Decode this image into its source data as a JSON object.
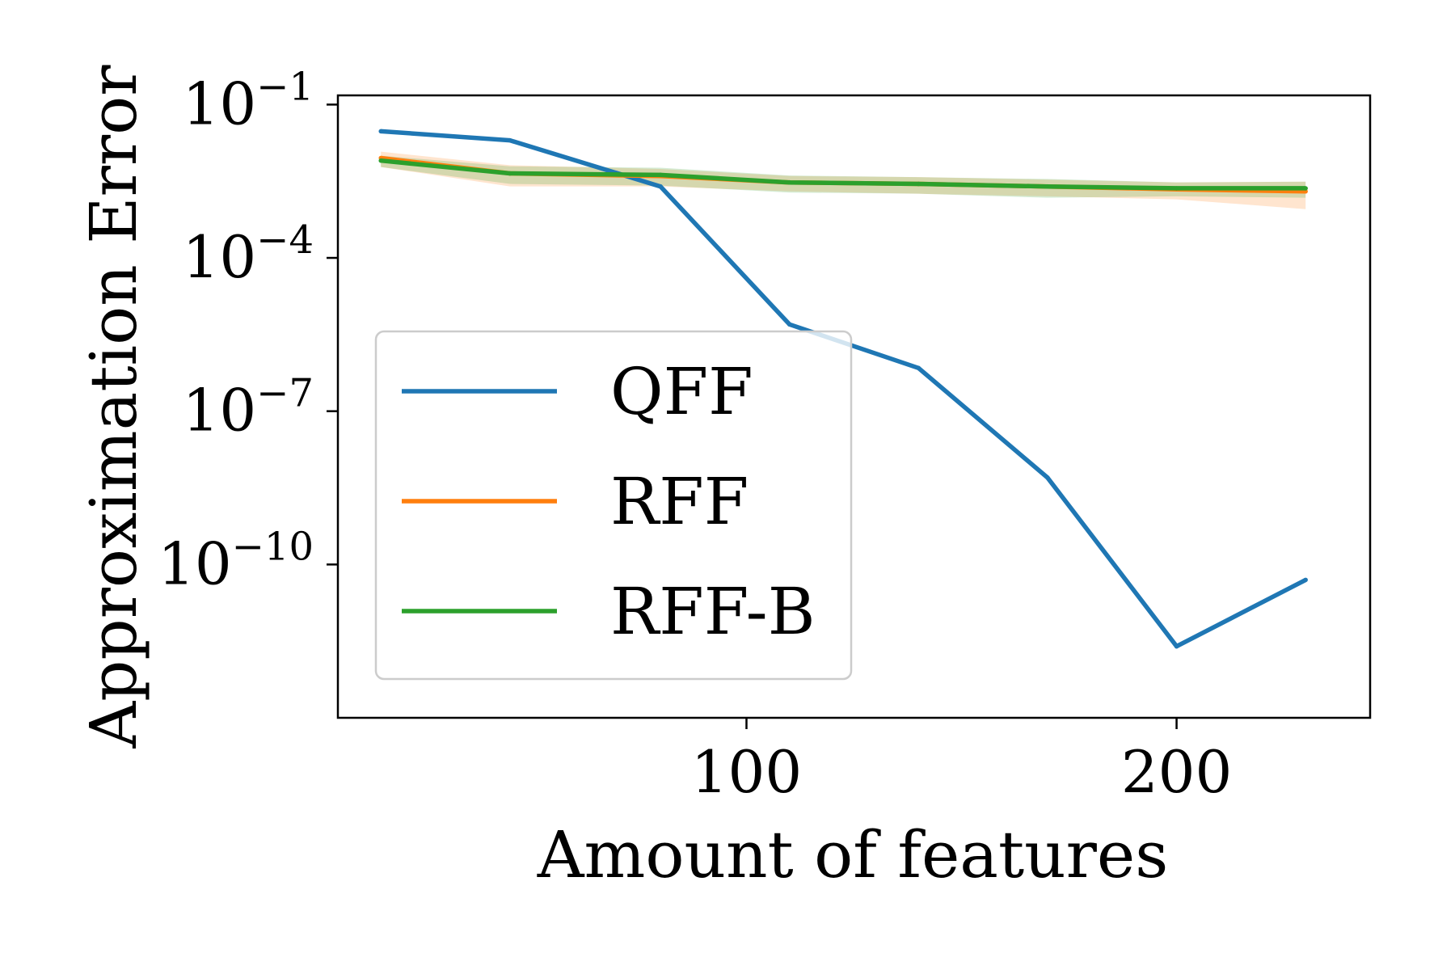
{
  "chart_data": {
    "type": "line",
    "xlabel": "Amount of features",
    "ylabel": "Approximation Error",
    "xlim": [
      5,
      245
    ],
    "ylim_log10": [
      -13.0,
      -0.82
    ],
    "yscale": "log",
    "x_ticks": [
      {
        "value": 100,
        "label": "100"
      },
      {
        "value": 200,
        "label": "200"
      }
    ],
    "y_ticks": [
      {
        "exp": -1,
        "base": "10",
        "sup": "−1"
      },
      {
        "exp": -4,
        "base": "10",
        "sup": "−4"
      },
      {
        "exp": -7,
        "base": "10",
        "sup": "−7"
      },
      {
        "exp": -10,
        "base": "10",
        "sup": "−10"
      }
    ],
    "legend_position": "center-left",
    "grid": false,
    "series": [
      {
        "name": "QFF",
        "color": "#1f77b4",
        "x": [
          15,
          45,
          80,
          110,
          140,
          170,
          200,
          230
        ],
        "y": [
          0.03,
          0.02,
          0.0025,
          5e-06,
          7e-07,
          5e-09,
          2.5e-12,
          5e-11
        ]
      },
      {
        "name": "RFF",
        "color": "#ff7f0e",
        "x": [
          15,
          45,
          80,
          110,
          140,
          170,
          200,
          230
        ],
        "y": [
          0.009,
          0.0045,
          0.004,
          0.003,
          0.0028,
          0.0025,
          0.0022,
          0.002
        ],
        "band": [
          0.006,
          0.0025,
          0.0025,
          0.002,
          0.0018,
          0.0016,
          0.0014,
          0.0009
        ]
      },
      {
        "name": "RFF-B",
        "color": "#2ca02c",
        "x": [
          15,
          45,
          80,
          110,
          140,
          170,
          200,
          230
        ],
        "y": [
          0.008,
          0.0045,
          0.0042,
          0.003,
          0.0028,
          0.0025,
          0.0023,
          0.0023
        ],
        "band": [
          0.006,
          0.0028,
          0.0026,
          0.0019,
          0.0018,
          0.0015,
          0.0016,
          0.0015
        ]
      }
    ]
  }
}
